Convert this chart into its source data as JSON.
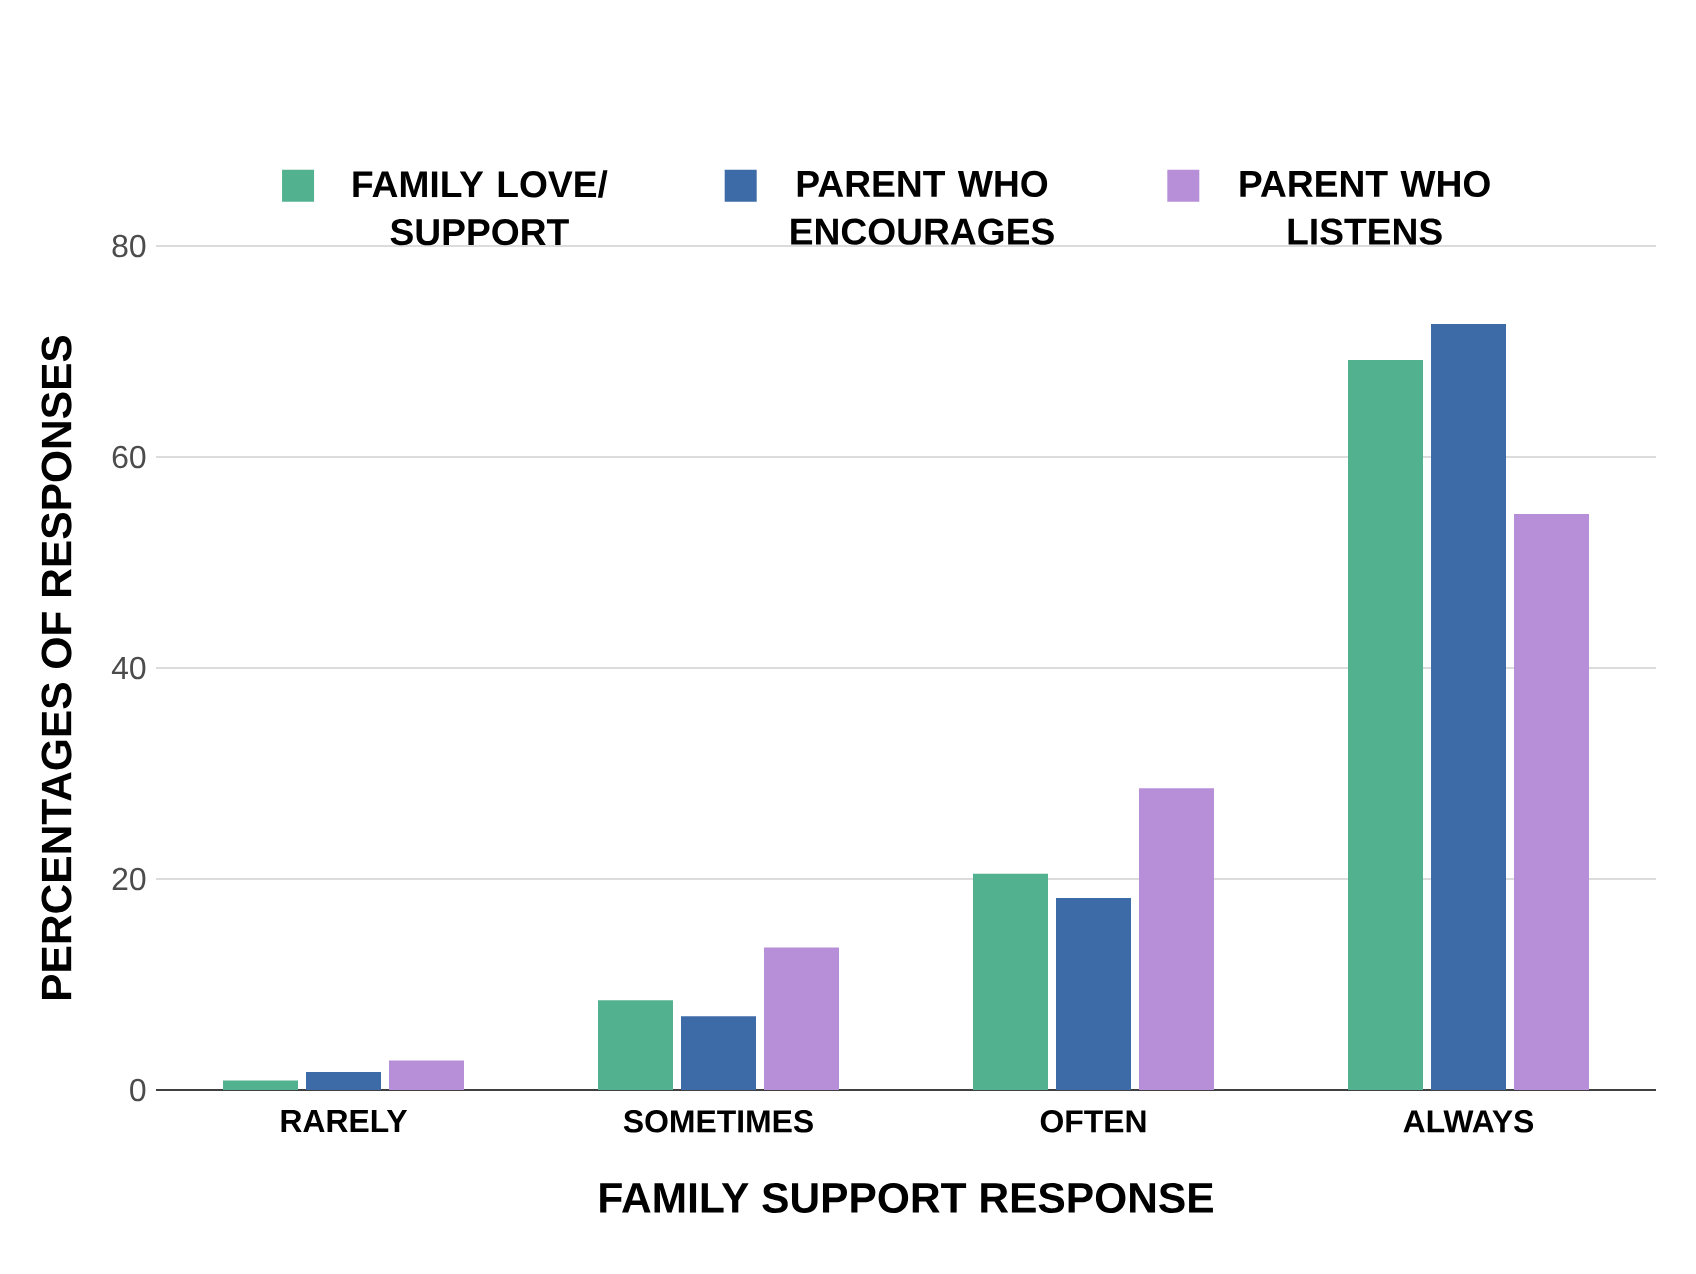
{
  "chart_data": {
    "type": "bar",
    "xlabel": "FAMILY SUPPORT RESPONSE",
    "ylabel": "PERCENTAGES OF RESPONSES",
    "categories": [
      "RARELY",
      "SOMETIMES",
      "OFTEN",
      "ALWAYS"
    ],
    "series": [
      {
        "name": "FAMILY LOVE/ SUPPORT",
        "color": "#52b290",
        "values": [
          0.9,
          8.5,
          20.5,
          69.2
        ]
      },
      {
        "name": "PARENT WHO ENCOURAGES",
        "color": "#3c6ba8",
        "values": [
          1.7,
          7.0,
          18.2,
          72.6
        ]
      },
      {
        "name": "PARENT WHO LISTENS",
        "color": "#b68fd8",
        "values": [
          2.8,
          13.5,
          28.6,
          54.6
        ]
      }
    ],
    "ylim": [
      0,
      80
    ],
    "yticks": [
      0,
      20,
      40,
      60,
      80
    ],
    "grid": "y",
    "legend": "top"
  }
}
